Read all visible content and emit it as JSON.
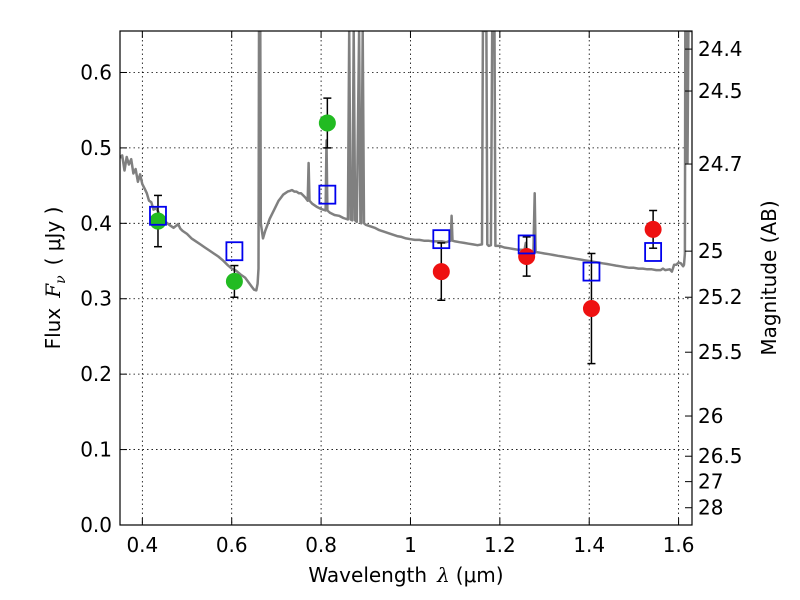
{
  "chart_data": {
    "type": "scatter",
    "xlabel": {
      "text": "Wavelength",
      "symbol": "λ",
      "unit": "(μm)"
    },
    "ylabel": {
      "text": "Flux",
      "symbol": "F",
      "subscript": "ν",
      "unit": "( μJy )"
    },
    "y2label": "Magnitude (AB)",
    "xlim": [
      0.35,
      1.63
    ],
    "ylim": [
      0.0,
      0.655
    ],
    "grid": true,
    "x_ticks": [
      0.4,
      0.6,
      0.8,
      1.0,
      1.2,
      1.4,
      1.6
    ],
    "x_tick_labels": [
      "0.4",
      "0.6",
      "0.8",
      "1",
      "1.2",
      "1.4",
      "1.6"
    ],
    "y_ticks": [
      0.0,
      0.1,
      0.2,
      0.3,
      0.4,
      0.5,
      0.6
    ],
    "y_tick_labels": [
      "0.0",
      "0.1",
      "0.2",
      "0.3",
      "0.4",
      "0.5",
      "0.6"
    ],
    "y2_ticks": [
      {
        "label": "24.4",
        "flux": 0.631
      },
      {
        "label": "24.5",
        "flux": 0.5754
      },
      {
        "label": "24.7",
        "flux": 0.4786
      },
      {
        "label": "25",
        "flux": 0.3631
      },
      {
        "label": "25.2",
        "flux": 0.302
      },
      {
        "label": "25.5",
        "flux": 0.2291
      },
      {
        "label": "26",
        "flux": 0.1445
      },
      {
        "label": "26.5",
        "flux": 0.0912
      },
      {
        "label": "27",
        "flux": 0.0575
      },
      {
        "label": "28",
        "flux": 0.0229
      }
    ],
    "series": [
      {
        "marker": "circle",
        "color": "#22bb22",
        "points": [
          {
            "x": 0.435,
            "y": 0.403,
            "err": 0.034
          },
          {
            "x": 0.606,
            "y": 0.323,
            "err": 0.021
          },
          {
            "x": 0.814,
            "y": 0.533,
            "err": 0.033
          }
        ]
      },
      {
        "marker": "circle",
        "color": "#ee1111",
        "points": [
          {
            "x": 1.069,
            "y": 0.336,
            "err": 0.038
          },
          {
            "x": 1.26,
            "y": 0.356,
            "err": 0.026
          },
          {
            "x": 1.405,
            "y": 0.287,
            "err": 0.073
          },
          {
            "x": 1.543,
            "y": 0.392,
            "err": 0.025
          }
        ]
      },
      {
        "marker": "square",
        "color": "#0000ee",
        "points": [
          {
            "x": 0.435,
            "y": 0.41
          },
          {
            "x": 0.606,
            "y": 0.363
          },
          {
            "x": 0.814,
            "y": 0.438
          },
          {
            "x": 1.069,
            "y": 0.379
          },
          {
            "x": 1.26,
            "y": 0.372
          },
          {
            "x": 1.405,
            "y": 0.336
          },
          {
            "x": 1.543,
            "y": 0.362
          }
        ]
      }
    ],
    "model_spectrum": {
      "color": "#808080",
      "points": [
        [
          0.35,
          0.487
        ],
        [
          0.355,
          0.49
        ],
        [
          0.36,
          0.47
        ],
        [
          0.365,
          0.488
        ],
        [
          0.37,
          0.478
        ],
        [
          0.375,
          0.485
        ],
        [
          0.38,
          0.466
        ],
        [
          0.385,
          0.472
        ],
        [
          0.39,
          0.455
        ],
        [
          0.395,
          0.465
        ],
        [
          0.4,
          0.452
        ],
        [
          0.405,
          0.446
        ],
        [
          0.41,
          0.44
        ],
        [
          0.415,
          0.43
        ],
        [
          0.42,
          0.428
        ],
        [
          0.425,
          0.418
        ],
        [
          0.43,
          0.42
        ],
        [
          0.435,
          0.416
        ],
        [
          0.44,
          0.41
        ],
        [
          0.45,
          0.403
        ],
        [
          0.46,
          0.398
        ],
        [
          0.47,
          0.394
        ],
        [
          0.48,
          0.399
        ],
        [
          0.485,
          0.393
        ],
        [
          0.49,
          0.39
        ],
        [
          0.5,
          0.386
        ],
        [
          0.51,
          0.38
        ],
        [
          0.52,
          0.376
        ],
        [
          0.53,
          0.372
        ],
        [
          0.54,
          0.368
        ],
        [
          0.55,
          0.364
        ],
        [
          0.56,
          0.36
        ],
        [
          0.57,
          0.356
        ],
        [
          0.58,
          0.351
        ],
        [
          0.59,
          0.345
        ],
        [
          0.6,
          0.34
        ],
        [
          0.61,
          0.337
        ],
        [
          0.62,
          0.332
        ],
        [
          0.63,
          0.328
        ],
        [
          0.64,
          0.32
        ],
        [
          0.645,
          0.316
        ],
        [
          0.65,
          0.312
        ],
        [
          0.655,
          0.311
        ],
        [
          0.658,
          0.32
        ],
        [
          0.66,
          0.34
        ],
        [
          0.661,
          0.655
        ],
        [
          0.664,
          0.655
        ],
        [
          0.665,
          0.4
        ],
        [
          0.67,
          0.38
        ],
        [
          0.675,
          0.39
        ],
        [
          0.68,
          0.398
        ],
        [
          0.685,
          0.406
        ],
        [
          0.69,
          0.412
        ],
        [
          0.695,
          0.418
        ],
        [
          0.7,
          0.424
        ],
        [
          0.705,
          0.43
        ],
        [
          0.71,
          0.434
        ],
        [
          0.715,
          0.438
        ],
        [
          0.72,
          0.44
        ],
        [
          0.725,
          0.442
        ],
        [
          0.73,
          0.443
        ],
        [
          0.735,
          0.444
        ],
        [
          0.74,
          0.442
        ],
        [
          0.745,
          0.442
        ],
        [
          0.75,
          0.44
        ],
        [
          0.755,
          0.44
        ],
        [
          0.76,
          0.437
        ],
        [
          0.765,
          0.434
        ],
        [
          0.77,
          0.43
        ],
        [
          0.772,
          0.48
        ],
        [
          0.774,
          0.43
        ],
        [
          0.78,
          0.426
        ],
        [
          0.79,
          0.422
        ],
        [
          0.8,
          0.419
        ],
        [
          0.805,
          0.418
        ],
        [
          0.81,
          0.417
        ],
        [
          0.812,
          0.51
        ],
        [
          0.814,
          0.417
        ],
        [
          0.82,
          0.414
        ],
        [
          0.83,
          0.411
        ],
        [
          0.84,
          0.41
        ],
        [
          0.85,
          0.407
        ],
        [
          0.86,
          0.405
        ],
        [
          0.863,
          0.655
        ],
        [
          0.866,
          0.405
        ],
        [
          0.87,
          0.404
        ],
        [
          0.873,
          0.655
        ],
        [
          0.876,
          0.404
        ],
        [
          0.88,
          0.402
        ],
        [
          0.885,
          0.655
        ],
        [
          0.888,
          0.402
        ],
        [
          0.89,
          0.4
        ],
        [
          0.893,
          0.655
        ],
        [
          0.896,
          0.4
        ],
        [
          0.9,
          0.398
        ],
        [
          0.91,
          0.396
        ],
        [
          0.92,
          0.394
        ],
        [
          0.93,
          0.391
        ],
        [
          0.94,
          0.389
        ],
        [
          0.95,
          0.387
        ],
        [
          0.96,
          0.385
        ],
        [
          0.97,
          0.383
        ],
        [
          0.98,
          0.382
        ],
        [
          0.99,
          0.38
        ],
        [
          1.0,
          0.379
        ],
        [
          1.01,
          0.378
        ],
        [
          1.02,
          0.378
        ],
        [
          1.03,
          0.377
        ],
        [
          1.04,
          0.377
        ],
        [
          1.05,
          0.376
        ],
        [
          1.06,
          0.376
        ],
        [
          1.07,
          0.376
        ],
        [
          1.08,
          0.375
        ],
        [
          1.09,
          0.377
        ],
        [
          1.092,
          0.41
        ],
        [
          1.094,
          0.377
        ],
        [
          1.1,
          0.376
        ],
        [
          1.11,
          0.375
        ],
        [
          1.12,
          0.374
        ],
        [
          1.13,
          0.373
        ],
        [
          1.14,
          0.372
        ],
        [
          1.15,
          0.371
        ],
        [
          1.16,
          0.372
        ],
        [
          1.162,
          0.655
        ],
        [
          1.17,
          0.655
        ],
        [
          1.172,
          0.372
        ],
        [
          1.175,
          0.37
        ],
        [
          1.18,
          0.371
        ],
        [
          1.183,
          0.655
        ],
        [
          1.188,
          0.655
        ],
        [
          1.19,
          0.37
        ],
        [
          1.2,
          0.37
        ],
        [
          1.21,
          0.368
        ],
        [
          1.22,
          0.367
        ],
        [
          1.23,
          0.366
        ],
        [
          1.24,
          0.365
        ],
        [
          1.25,
          0.365
        ],
        [
          1.255,
          0.364
        ],
        [
          1.258,
          0.374
        ],
        [
          1.26,
          0.364
        ],
        [
          1.27,
          0.363
        ],
        [
          1.275,
          0.362
        ],
        [
          1.278,
          0.44
        ],
        [
          1.28,
          0.362
        ],
        [
          1.29,
          0.361
        ],
        [
          1.3,
          0.36
        ],
        [
          1.31,
          0.359
        ],
        [
          1.32,
          0.358
        ],
        [
          1.33,
          0.357
        ],
        [
          1.34,
          0.356
        ],
        [
          1.35,
          0.355
        ],
        [
          1.36,
          0.354
        ],
        [
          1.37,
          0.353
        ],
        [
          1.38,
          0.352
        ],
        [
          1.39,
          0.351
        ],
        [
          1.4,
          0.35
        ],
        [
          1.41,
          0.349
        ],
        [
          1.42,
          0.348
        ],
        [
          1.43,
          0.347
        ],
        [
          1.44,
          0.346
        ],
        [
          1.45,
          0.345
        ],
        [
          1.46,
          0.344
        ],
        [
          1.47,
          0.343
        ],
        [
          1.48,
          0.342
        ],
        [
          1.49,
          0.341
        ],
        [
          1.5,
          0.341
        ],
        [
          1.51,
          0.34
        ],
        [
          1.52,
          0.34
        ],
        [
          1.53,
          0.339
        ],
        [
          1.54,
          0.339
        ],
        [
          1.55,
          0.338
        ],
        [
          1.56,
          0.338
        ],
        [
          1.565,
          0.34
        ],
        [
          1.57,
          0.338
        ],
        [
          1.58,
          0.339
        ],
        [
          1.585,
          0.336
        ],
        [
          1.59,
          0.345
        ],
        [
          1.595,
          0.345
        ],
        [
          1.6,
          0.348
        ],
        [
          1.605,
          0.347
        ],
        [
          1.61,
          0.343
        ],
        [
          1.612,
          0.345
        ],
        [
          1.614,
          0.36
        ],
        [
          1.615,
          0.655
        ],
        [
          1.618,
          0.655
        ],
        [
          1.62,
          0.48
        ],
        [
          1.622,
          0.655
        ],
        [
          1.63,
          0.655
        ]
      ]
    }
  }
}
